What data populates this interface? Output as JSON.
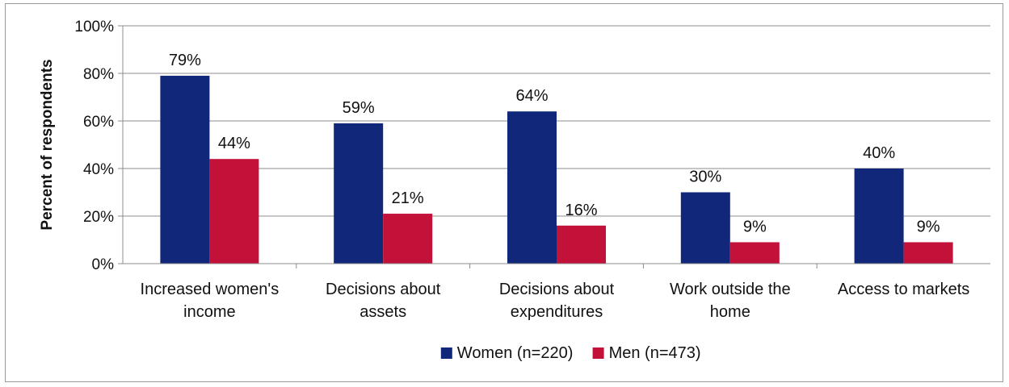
{
  "chart_data": {
    "type": "bar",
    "ylabel": "Percent of respondents",
    "ylim": [
      0,
      100
    ],
    "yticks": [
      "0%",
      "20%",
      "40%",
      "60%",
      "80%",
      "100%"
    ],
    "grid": true,
    "legend_position": "bottom",
    "categories": [
      [
        "Increased women's",
        "income"
      ],
      [
        "Decisions about",
        "assets"
      ],
      [
        "Decisions about",
        "expenditures"
      ],
      [
        "Work outside the",
        "home"
      ],
      [
        "Access to markets"
      ]
    ],
    "series": [
      {
        "name": "Women (n=220)",
        "color": "#10277a",
        "values": [
          79,
          59,
          64,
          30,
          40
        ],
        "labels": [
          "79%",
          "59%",
          "64%",
          "30%",
          "40%"
        ]
      },
      {
        "name": "Men (n=473)",
        "color": "#c3123a",
        "values": [
          44,
          21,
          16,
          9,
          9
        ],
        "labels": [
          "44%",
          "21%",
          "16%",
          "9%",
          "9%"
        ]
      }
    ]
  }
}
